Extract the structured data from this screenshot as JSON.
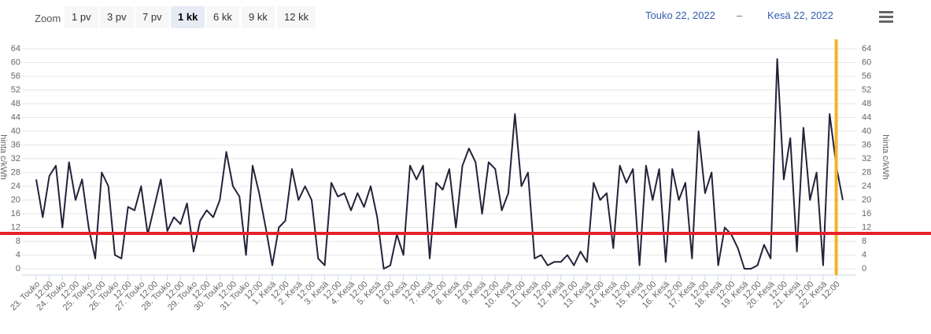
{
  "toolbar": {
    "zoom_label": "Zoom",
    "buttons": [
      "1 pv",
      "3 pv",
      "7 pv",
      "1 kk",
      "6 kk",
      "9 kk",
      "12 kk"
    ],
    "selected": 3,
    "range_from": "Touko 22, 2022",
    "range_separator": "–",
    "range_to": "Kesä 22, 2022"
  },
  "chart_data": {
    "type": "line",
    "y_axis_title": "hinta c/kWh",
    "color": "#23223a",
    "categories": [
      "23. Touko",
      null,
      "12:00",
      null,
      "24. Touko",
      null,
      "12:00",
      null,
      "25. Touko",
      null,
      "12:00",
      null,
      "26. Touko",
      null,
      "12:00",
      null,
      "27. Touko",
      null,
      "12:00",
      null,
      "28. Touko",
      null,
      "12:00",
      null,
      "29. Touko",
      null,
      "12:00",
      null,
      "30. Touko",
      null,
      "12:00",
      null,
      "31. Touko",
      null,
      "12:00",
      null,
      "1. Kesä",
      null,
      "12:00",
      null,
      "2. Kesä",
      null,
      "12:00",
      null,
      "3. Kesä",
      null,
      "12:00",
      null,
      "4. Kesä",
      null,
      "12:00",
      null,
      "5. Kesä",
      null,
      "12:00",
      null,
      "6. Kesä",
      null,
      "12:00",
      null,
      "7. Kesä",
      null,
      "12:00",
      null,
      "8. Kesä",
      null,
      "12:00",
      null,
      "9. Kesä",
      null,
      "12:00",
      null,
      "10. Kesä",
      null,
      "12:00",
      null,
      "11. Kesä",
      null,
      "12:00",
      null,
      "12. Kesä",
      null,
      "12:00",
      null,
      "13. Kesä",
      null,
      "12:00",
      null,
      "14. Kesä",
      null,
      "12:00",
      null,
      "15. Kesä",
      null,
      "12:00",
      null,
      "16. Kesä",
      null,
      "12:00",
      null,
      "17. Kesä",
      null,
      "12:00",
      null,
      "18. Kesä",
      null,
      "12:00",
      null,
      "19. Kesä",
      null,
      "12:00",
      null,
      "20. Kesä",
      null,
      "12:00",
      null,
      "21. Kesä",
      null,
      "12:00",
      null,
      "22. Kesä",
      null,
      "12:00",
      null
    ],
    "values": [
      26,
      15,
      27,
      30,
      12,
      31,
      20,
      26,
      12,
      3,
      28,
      24,
      4,
      3,
      18,
      17,
      24,
      10,
      18,
      26,
      11,
      15,
      13,
      19,
      5,
      14,
      17,
      15,
      20,
      34,
      24,
      21,
      4,
      30,
      22,
      12,
      1,
      12,
      14,
      29,
      20,
      24,
      20,
      3,
      1,
      25,
      21,
      22,
      17,
      22,
      18,
      24,
      15,
      0,
      1,
      10,
      4,
      30,
      26,
      30,
      3,
      25,
      23,
      29,
      12,
      30,
      35,
      31,
      16,
      31,
      29,
      17,
      22,
      45,
      24,
      28,
      3,
      4,
      1,
      2,
      2,
      4,
      1,
      5,
      2,
      25,
      20,
      22,
      6,
      30,
      25,
      29,
      1,
      30,
      20,
      29,
      2,
      29,
      20,
      25,
      3,
      40,
      22,
      28,
      1,
      12,
      10,
      6,
      0,
      0,
      1,
      7,
      3,
      61,
      26,
      38,
      5,
      41,
      20,
      28,
      1,
      45,
      30,
      20
    ],
    "ylim": [
      0,
      64
    ],
    "yticks": [
      0,
      4,
      8,
      12,
      16,
      20,
      24,
      28,
      32,
      36,
      40,
      44,
      48,
      52,
      56,
      60,
      64
    ],
    "y2lim": [
      0,
      64
    ],
    "y2ticks": [
      0,
      4,
      8,
      12,
      16,
      20,
      24,
      28,
      32,
      36,
      40,
      44,
      48,
      52,
      56,
      60,
      64
    ],
    "grid": true,
    "reference_line": {
      "value": 10.3,
      "color": "#e8202a"
    },
    "plot_line": {
      "index": 122,
      "color": "#f0b429"
    }
  }
}
